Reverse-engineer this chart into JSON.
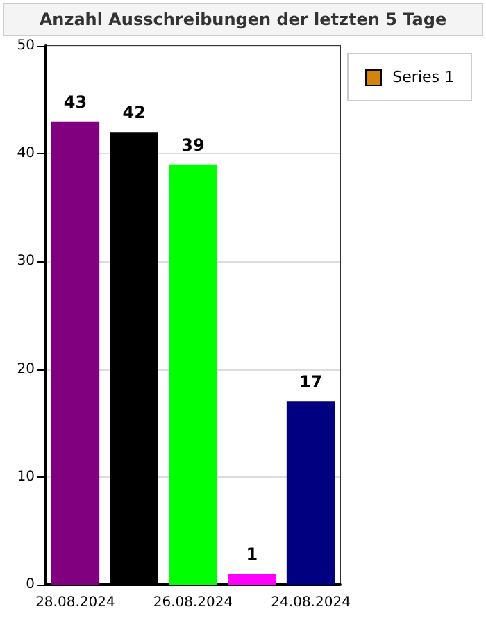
{
  "chart_data": {
    "type": "bar",
    "title": "Anzahl Ausschreibungen der letzten 5 Tage",
    "categories": [
      "28.08.2024",
      null,
      "26.08.2024",
      null,
      "24.08.2024"
    ],
    "series": [
      {
        "name": "Series 1",
        "color": "#d4840a",
        "colors": [
          "#800080",
          "#000000",
          "#00ff00",
          "#ff00ff",
          "#000080"
        ],
        "values": [
          43,
          42,
          39,
          1,
          17
        ]
      }
    ],
    "ylim": [
      0,
      50
    ],
    "yticks": [
      0,
      10,
      20,
      30,
      40,
      50
    ],
    "grid": "y",
    "legend": "top right",
    "data_labels": true
  }
}
